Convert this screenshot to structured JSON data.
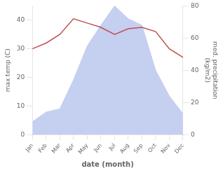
{
  "chart_data": {
    "type": "line",
    "xlabel": "date (month)",
    "ylabel": "max temp (C)",
    "y2label": "med. precipitation\n(kg/m2)",
    "categories": [
      "Jan",
      "Feb",
      "Mar",
      "Apr",
      "May",
      "Jun",
      "Jul",
      "Aug",
      "Sep",
      "Oct",
      "Nov",
      "Dec"
    ],
    "series": [
      {
        "type": "area",
        "axis": "y2",
        "color": "#c5cff0",
        "values": [
          8,
          14,
          16,
          34,
          55,
          68,
          80,
          72,
          68,
          40,
          24,
          13
        ]
      },
      {
        "type": "line",
        "color": "#c0504d",
        "values": [
          30,
          32,
          35,
          40.5,
          39,
          37.5,
          35,
          37,
          37.5,
          36,
          30,
          27
        ]
      }
    ],
    "ylim": [
      0,
      45
    ],
    "yticks": [
      0,
      10,
      20,
      30,
      40
    ],
    "y2lim": [
      0,
      80
    ],
    "y2ticks": [
      0,
      20,
      40,
      60,
      80
    ],
    "grid": false
  }
}
